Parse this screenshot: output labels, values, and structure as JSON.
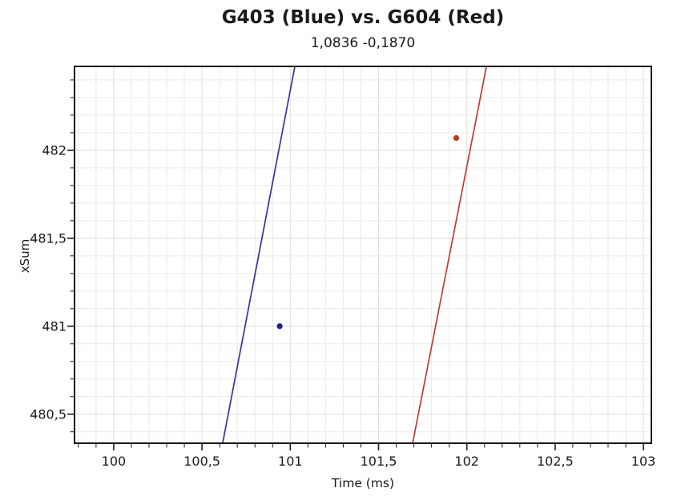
{
  "chart_data": {
    "type": "line",
    "title": "G403 (Blue) vs. G604 (Red)",
    "subtitle": "1,0836 -0,1870",
    "xlabel": "Time (ms)",
    "ylabel": "xSum",
    "xlim": [
      99.778,
      103.045
    ],
    "ylim": [
      480.335,
      482.477
    ],
    "x_major_ticks": [
      {
        "value": 100,
        "label": "100"
      },
      {
        "value": 100.5,
        "label": "100,5"
      },
      {
        "value": 101,
        "label": "101"
      },
      {
        "value": 101.5,
        "label": "101,5"
      },
      {
        "value": 102,
        "label": "102"
      },
      {
        "value": 102.5,
        "label": "102,5"
      },
      {
        "value": 103,
        "label": "103"
      }
    ],
    "y_major_ticks": [
      {
        "value": 480.5,
        "label": "480,5"
      },
      {
        "value": 481,
        "label": "481"
      },
      {
        "value": 481.5,
        "label": "481,5"
      },
      {
        "value": 482,
        "label": "482"
      }
    ],
    "minor_tick_step": 0.1,
    "grid": {
      "on": true,
      "minor_step": 0.1,
      "minor_color": "#eaeaea",
      "major_color": "#dcdcdc"
    },
    "series": [
      {
        "name": "G403-blue-line",
        "type": "line",
        "color": "#3434a2",
        "width": 1.7,
        "points": [
          [
            100.617,
            480.335
          ],
          [
            101.026,
            482.477
          ]
        ]
      },
      {
        "name": "G604-red-line",
        "type": "line",
        "color": "#bb3c38",
        "width": 1.7,
        "points": [
          [
            101.693,
            480.335
          ],
          [
            102.111,
            482.477
          ]
        ]
      },
      {
        "name": "G403-blue-point",
        "type": "scatter",
        "color": "#20208e",
        "radius": 3.6,
        "points": [
          [
            100.94,
            481.0
          ]
        ]
      },
      {
        "name": "G604-red-point",
        "type": "scatter",
        "color": "#c03426",
        "radius": 3.6,
        "points": [
          [
            101.94,
            482.07
          ]
        ]
      }
    ],
    "axis_color": "#1a1a1a",
    "text_color": "#1a1a1a",
    "background": "#ffffff",
    "legend": "none"
  }
}
